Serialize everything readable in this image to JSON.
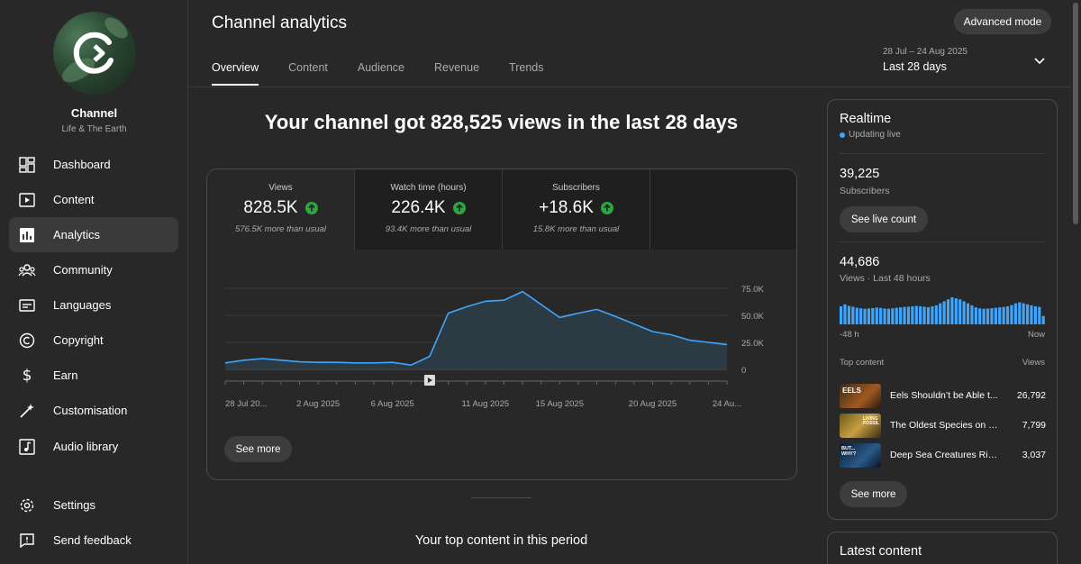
{
  "channel": {
    "name": "Channel",
    "subtitle": "Life & The Earth"
  },
  "nav": {
    "items": [
      {
        "label": "Dashboard",
        "icon": "dashboard-icon"
      },
      {
        "label": "Content",
        "icon": "content-icon"
      },
      {
        "label": "Analytics",
        "icon": "analytics-icon",
        "active": true
      },
      {
        "label": "Community",
        "icon": "community-icon"
      },
      {
        "label": "Languages",
        "icon": "languages-icon"
      },
      {
        "label": "Copyright",
        "icon": "copyright-icon"
      },
      {
        "label": "Earn",
        "icon": "earn-icon"
      },
      {
        "label": "Customisation",
        "icon": "customisation-icon"
      },
      {
        "label": "Audio library",
        "icon": "audio-library-icon"
      }
    ],
    "bottom": [
      {
        "label": "Settings",
        "icon": "settings-icon"
      },
      {
        "label": "Send feedback",
        "icon": "feedback-icon"
      }
    ]
  },
  "header": {
    "title": "Channel analytics",
    "tabs": [
      "Overview",
      "Content",
      "Audience",
      "Revenue",
      "Trends"
    ],
    "active_tab": "Overview",
    "advanced_button": "Advanced mode",
    "date_range": "28 Jul – 24 Aug 2025",
    "date_label": "Last 28 days"
  },
  "overview": {
    "headline": "Your channel got 828,525 views in the last 28 days",
    "metrics": [
      {
        "label": "Views",
        "value": "828.5K",
        "note": "576.5K more than usual"
      },
      {
        "label": "Watch time (hours)",
        "value": "226.4K",
        "note": "93.4K more than usual"
      },
      {
        "label": "Subscribers",
        "value": "+18.6K",
        "note": "15.8K more than usual"
      }
    ],
    "see_more": "See more",
    "top_content_title": "Your top content in this period"
  },
  "chart_data": {
    "type": "area",
    "title": "Views",
    "x": [
      "28 Jul",
      "29 Jul",
      "30 Jul",
      "31 Jul",
      "1 Aug",
      "2 Aug",
      "3 Aug",
      "4 Aug",
      "5 Aug",
      "6 Aug",
      "7 Aug",
      "8 Aug",
      "9 Aug",
      "10 Aug",
      "11 Aug",
      "12 Aug",
      "13 Aug",
      "14 Aug",
      "15 Aug",
      "16 Aug",
      "17 Aug",
      "18 Aug",
      "19 Aug",
      "20 Aug",
      "21 Aug",
      "22 Aug",
      "23 Aug",
      "24 Aug"
    ],
    "values": [
      6000,
      8500,
      10000,
      8500,
      7000,
      6500,
      6500,
      6000,
      6000,
      6500,
      4000,
      12000,
      52000,
      58000,
      63000,
      64000,
      72000,
      60000,
      48000,
      52000,
      55500,
      49000,
      42000,
      35000,
      32000,
      27000,
      25000,
      23000
    ],
    "x_tick_labels": [
      "28 Jul 20...",
      "2 Aug 2025",
      "6 Aug 2025",
      "11 Aug 2025",
      "15 Aug 2025",
      "20 Aug 2025",
      "24 Au..."
    ],
    "x_tick_index": [
      0,
      5,
      9,
      14,
      18,
      23,
      27
    ],
    "y_tick_labels": [
      "0",
      "25.0K",
      "50.0K",
      "75.0K"
    ],
    "y_ticks": [
      0,
      25000,
      50000,
      75000
    ],
    "ylim": [
      0,
      75000
    ],
    "marker_index": 11
  },
  "realtime": {
    "title": "Realtime",
    "status": "Updating live",
    "subscribers_value": "39,225",
    "subscribers_label": "Subscribers",
    "live_count_button": "See live count",
    "views_value": "44,686",
    "views_label": "Views · Last 48 hours",
    "axis_start": "-48 h",
    "axis_end": "Now",
    "hourly_views": [
      900,
      1000,
      920,
      880,
      830,
      800,
      780,
      790,
      810,
      840,
      820,
      790,
      780,
      800,
      830,
      850,
      870,
      880,
      900,
      920,
      900,
      880,
      860,
      900,
      950,
      1050,
      1150,
      1250,
      1350,
      1300,
      1250,
      1150,
      1050,
      950,
      850,
      800,
      780,
      790,
      810,
      830,
      850,
      870,
      900,
      960,
      1050,
      1100,
      1050,
      1000,
      950,
      900,
      870,
      420
    ],
    "top_content_label": "Top content",
    "views_column_label": "Views",
    "top_content": [
      {
        "title": "Eels Shouldn’t be Able t...",
        "views": "26,792",
        "thumb_text": "EELS"
      },
      {
        "title": "The Oldest Species on Ea...",
        "views": "7,799",
        "thumb_text": "LIVING FOSSIL"
      },
      {
        "title": "Deep Sea Creatures Rise ...",
        "views": "3,037",
        "thumb_text": "BUT... WHY?"
      }
    ],
    "see_more": "See more"
  },
  "latest": {
    "title": "Latest content"
  },
  "colors": {
    "accent": "#3ea6ff",
    "line": "#3ea6ff",
    "up": "#2ba640"
  }
}
